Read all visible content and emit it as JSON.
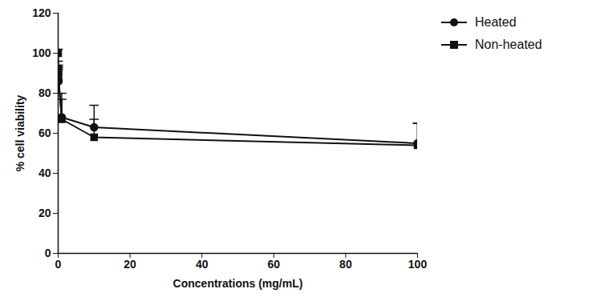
{
  "chart_data": {
    "type": "line",
    "x_label": "Concentrations (mg/mL)",
    "y_label": "% cell viability",
    "x": [
      0.001,
      0.01,
      0.1,
      1,
      10,
      100
    ],
    "series": [
      {
        "name": "Heated",
        "color": "#111111",
        "marker": "circle",
        "values": [
          91,
          90,
          86,
          68,
          63,
          55
        ],
        "errors": [
          3,
          4,
          6,
          12,
          11,
          10
        ]
      },
      {
        "name": "Non-heated",
        "color": "#111111",
        "marker": "square",
        "values": [
          100,
          92,
          88,
          67,
          58,
          54
        ],
        "errors": [
          2,
          4,
          5,
          10,
          9,
          11
        ]
      }
    ],
    "xlim": [
      0,
      100
    ],
    "xticks": [
      0,
      20,
      40,
      60,
      80,
      100
    ],
    "ylim": [
      0,
      120
    ],
    "yticks": [
      0,
      20,
      40,
      60,
      80,
      100,
      120
    ],
    "grid": false,
    "legend": "right"
  }
}
